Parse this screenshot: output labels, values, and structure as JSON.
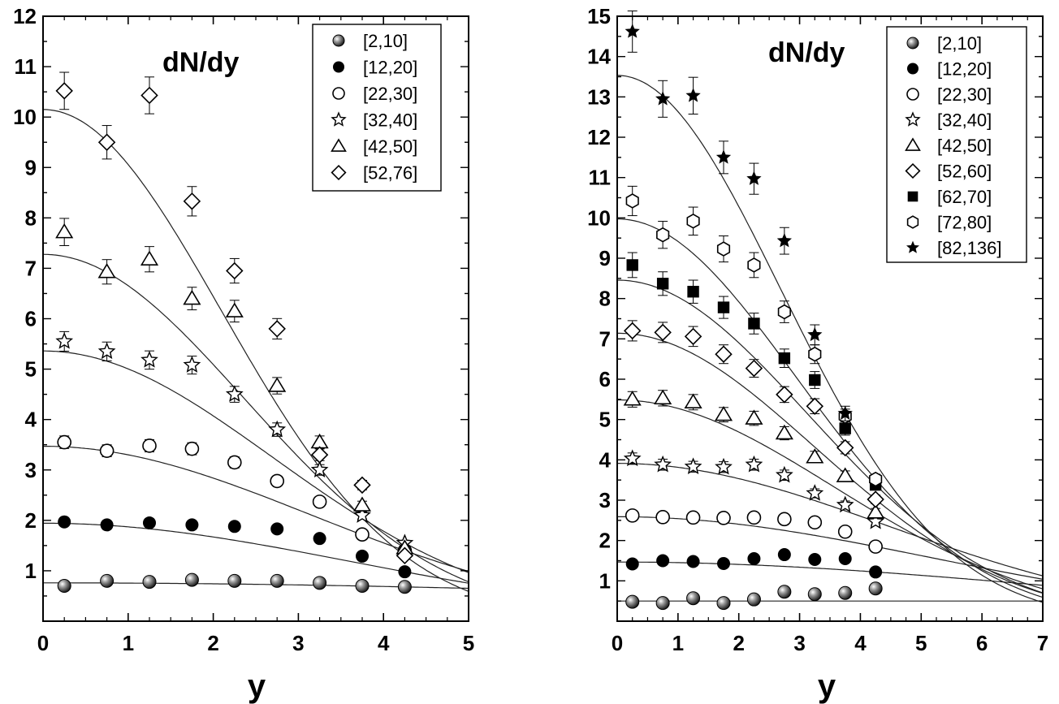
{
  "chart_data": [
    {
      "type": "scatter",
      "title": "dN/dy",
      "xlabel": "y",
      "ylabel": "",
      "xlim": [
        0,
        5
      ],
      "ylim": [
        0,
        12
      ],
      "x_ticks": [
        "0",
        "1",
        "2",
        "3",
        "4",
        "5"
      ],
      "y_ticks": [
        "1",
        "2",
        "3",
        "4",
        "5",
        "6",
        "7",
        "8",
        "9",
        "10",
        "11",
        "12"
      ],
      "legend_position": "top-right",
      "grid": false,
      "series": [
        {
          "name": "[2,10]",
          "marker": "shaded-circle",
          "x": [
            0.25,
            0.75,
            1.25,
            1.75,
            2.25,
            2.75,
            3.25,
            3.75,
            4.25
          ],
          "y": [
            0.7,
            0.8,
            0.78,
            0.82,
            0.8,
            0.8,
            0.76,
            0.7,
            0.68
          ]
        },
        {
          "name": "[12,20]",
          "marker": "filled-circle",
          "x": [
            0.25,
            0.75,
            1.25,
            1.75,
            2.25,
            2.75,
            3.25,
            3.75,
            4.25
          ],
          "y": [
            1.97,
            1.91,
            1.95,
            1.91,
            1.88,
            1.83,
            1.64,
            1.29,
            0.98
          ]
        },
        {
          "name": "[22,30]",
          "marker": "open-circle",
          "x": [
            0.25,
            0.75,
            1.25,
            1.75,
            2.25,
            2.75,
            3.25,
            3.75,
            4.25
          ],
          "y": [
            3.55,
            3.38,
            3.48,
            3.42,
            3.15,
            2.78,
            2.37,
            1.72,
            1.4
          ]
        },
        {
          "name": "[32,40]",
          "marker": "open-star",
          "x": [
            0.25,
            0.75,
            1.25,
            1.75,
            2.25,
            2.75,
            3.25,
            3.75,
            4.25
          ],
          "y": [
            5.55,
            5.35,
            5.18,
            5.08,
            4.5,
            3.8,
            3.0,
            2.1,
            1.55
          ]
        },
        {
          "name": "[42,50]",
          "marker": "open-triangle",
          "x": [
            0.25,
            0.75,
            1.25,
            1.75,
            2.25,
            2.75,
            3.25,
            3.75,
            4.25
          ],
          "y": [
            7.72,
            6.93,
            7.18,
            6.4,
            6.15,
            4.67,
            3.55,
            2.3,
            1.45
          ]
        },
        {
          "name": "[52,76]",
          "marker": "open-diamond",
          "x": [
            0.25,
            0.75,
            1.25,
            1.75,
            2.25,
            2.75,
            3.25,
            3.75,
            4.25
          ],
          "y": [
            10.52,
            9.5,
            10.43,
            8.33,
            6.95,
            5.8,
            3.3,
            2.7,
            1.3
          ]
        }
      ]
    },
    {
      "type": "scatter",
      "title": "dN/dy",
      "xlabel": "y",
      "ylabel": "",
      "xlim": [
        0,
        7
      ],
      "ylim": [
        0,
        15
      ],
      "x_ticks": [
        "0",
        "1",
        "2",
        "3",
        "4",
        "5",
        "6",
        "7"
      ],
      "y_ticks": [
        "1",
        "2",
        "3",
        "4",
        "5",
        "6",
        "7",
        "8",
        "9",
        "10",
        "11",
        "12",
        "13",
        "14",
        "15"
      ],
      "legend_position": "top-right",
      "grid": false,
      "series": [
        {
          "name": "[2,10]",
          "marker": "shaded-circle",
          "x": [
            0.25,
            0.75,
            1.25,
            1.75,
            2.25,
            2.75,
            3.25,
            3.75,
            4.25
          ],
          "y": [
            0.48,
            0.45,
            0.57,
            0.45,
            0.54,
            0.73,
            0.67,
            0.7,
            0.81
          ]
        },
        {
          "name": "[12,20]",
          "marker": "filled-circle",
          "x": [
            0.25,
            0.75,
            1.25,
            1.75,
            2.25,
            2.75,
            3.25,
            3.75,
            4.25
          ],
          "y": [
            1.42,
            1.5,
            1.48,
            1.43,
            1.55,
            1.65,
            1.53,
            1.55,
            1.22
          ]
        },
        {
          "name": "[22,30]",
          "marker": "open-circle",
          "x": [
            0.25,
            0.75,
            1.25,
            1.75,
            2.25,
            2.75,
            3.25,
            3.75,
            4.25
          ],
          "y": [
            2.62,
            2.58,
            2.57,
            2.56,
            2.57,
            2.53,
            2.45,
            2.22,
            1.85
          ]
        },
        {
          "name": "[32,40]",
          "marker": "open-star",
          "x": [
            0.25,
            0.75,
            1.25,
            1.75,
            2.25,
            2.75,
            3.25,
            3.75,
            4.25
          ],
          "y": [
            4.03,
            3.88,
            3.83,
            3.82,
            3.88,
            3.62,
            3.17,
            2.88,
            2.47
          ]
        },
        {
          "name": "[42,50]",
          "marker": "open-triangle",
          "x": [
            0.25,
            0.75,
            1.25,
            1.75,
            2.25,
            2.75,
            3.25,
            3.75,
            4.25
          ],
          "y": [
            5.5,
            5.53,
            5.43,
            5.12,
            5.03,
            4.66,
            4.07,
            3.6,
            2.7
          ]
        },
        {
          "name": "[52,60]",
          "marker": "open-diamond",
          "x": [
            0.25,
            0.75,
            1.25,
            1.75,
            2.25,
            2.75,
            3.25,
            3.75,
            4.25
          ],
          "y": [
            7.2,
            7.16,
            7.06,
            6.62,
            6.27,
            5.62,
            5.33,
            4.3,
            3.02
          ]
        },
        {
          "name": "[62,70]",
          "marker": "filled-square",
          "x": [
            0.25,
            0.75,
            1.25,
            1.75,
            2.25,
            2.75,
            3.25,
            3.75,
            4.25
          ],
          "y": [
            8.83,
            8.37,
            8.17,
            7.78,
            7.38,
            6.52,
            5.98,
            4.78,
            3.38
          ]
        },
        {
          "name": "[72,80]",
          "marker": "open-hexagon",
          "x": [
            0.25,
            0.75,
            1.25,
            1.75,
            2.25,
            2.75,
            3.25,
            3.75,
            4.25
          ],
          "y": [
            10.42,
            9.58,
            9.92,
            9.23,
            8.83,
            7.67,
            6.62,
            5.08,
            3.52
          ]
        },
        {
          "name": "[82,136]",
          "marker": "filled-star",
          "x": [
            0.25,
            0.75,
            1.25,
            1.75,
            2.25,
            2.75,
            3.25,
            3.75
          ],
          "y": [
            14.62,
            12.95,
            13.03,
            11.5,
            10.97,
            9.43,
            7.1,
            5.15
          ]
        }
      ]
    }
  ]
}
